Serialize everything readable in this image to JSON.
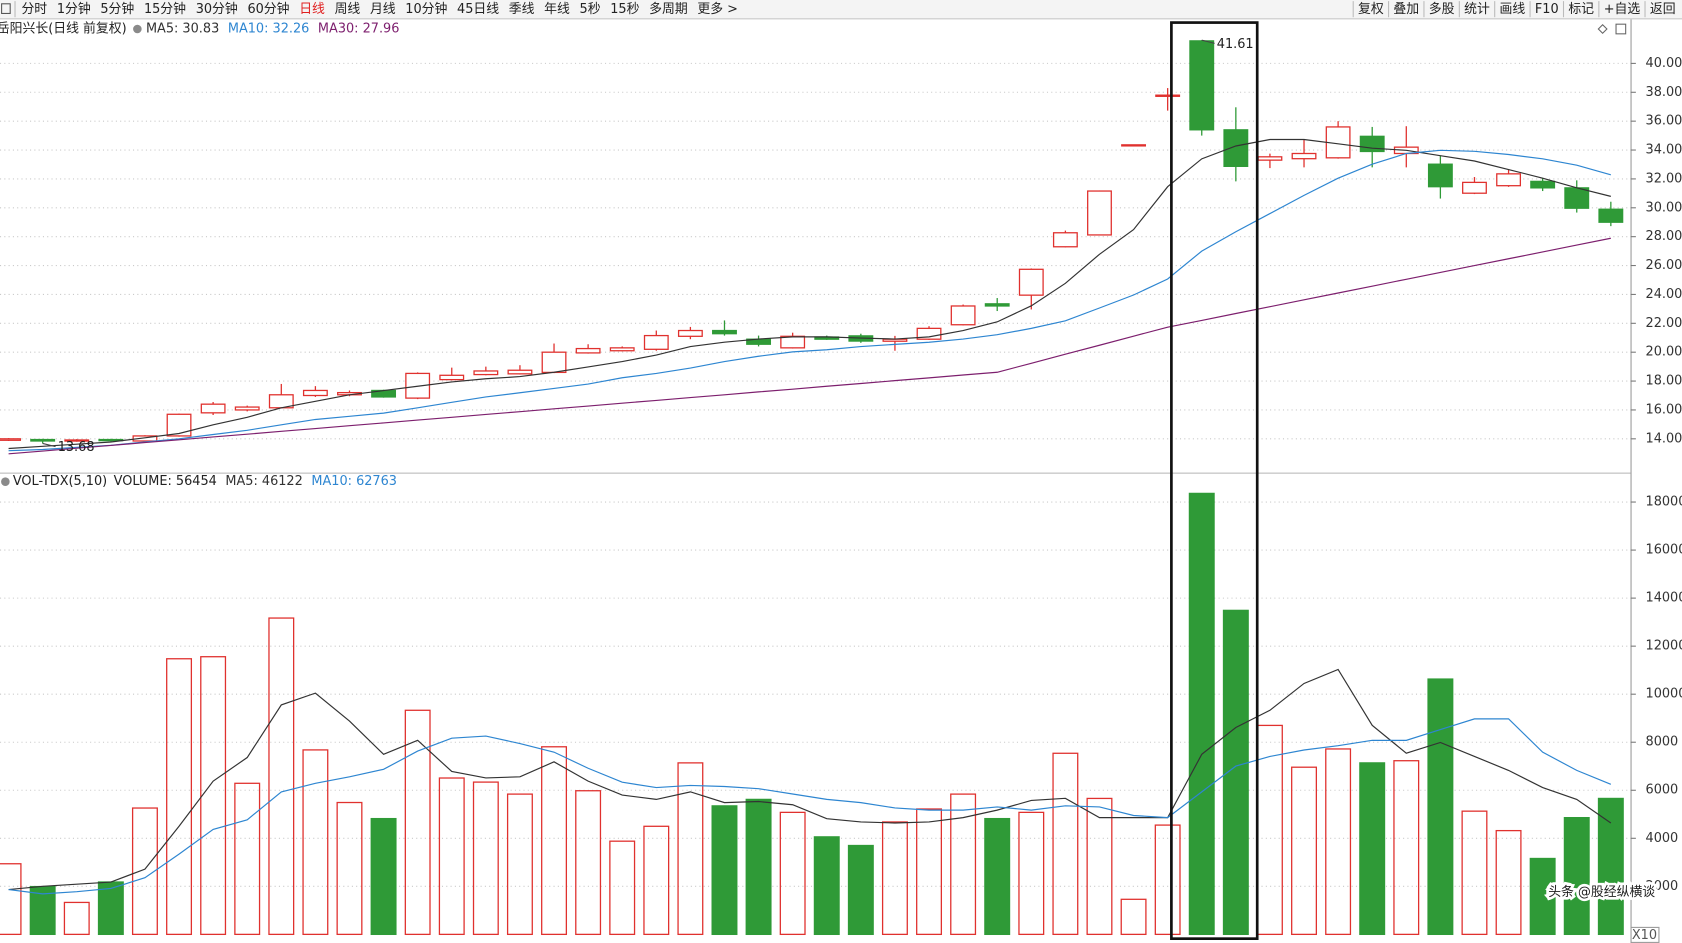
{
  "toolbar": {
    "periods": [
      "分时",
      "1分钟",
      "5分钟",
      "15分钟",
      "30分钟",
      "60分钟",
      "日线",
      "周线",
      "月线",
      "10分钟",
      "45日线",
      "季线",
      "年线",
      "5秒",
      "15秒",
      "多周期",
      "更多 >"
    ],
    "active_period_index": 6,
    "tools": [
      "复权",
      "叠加",
      "多股",
      "统计",
      "画线",
      "F10",
      "标记",
      "+自选",
      "返回"
    ]
  },
  "chart_data": [
    {
      "type": "candlestick",
      "title": "岳阳兴长(日线 前复权)",
      "up_color": "#e0312e",
      "down_color": "#2f9a37",
      "open": [
        13.9,
        13.95,
        13.85,
        13.95,
        13.85,
        14.2,
        15.8,
        16.0,
        16.15,
        17.0,
        17.05,
        17.35,
        16.82,
        18.1,
        18.45,
        18.5,
        18.6,
        19.95,
        20.1,
        20.2,
        21.1,
        21.5,
        20.9,
        20.3,
        21.05,
        21.13,
        20.76,
        20.9,
        21.9,
        23.35,
        23.95,
        27.3,
        28.12,
        34.36,
        37.72,
        41.56,
        35.4,
        33.3,
        33.4,
        33.46,
        34.95,
        33.76,
        33.02,
        31.01,
        31.53,
        31.83,
        31.38,
        29.9
      ],
      "high": [
        14.05,
        14.0,
        13.98,
        14.0,
        14.25,
        15.75,
        16.55,
        16.3,
        17.8,
        17.65,
        17.35,
        17.4,
        18.6,
        18.93,
        19.0,
        19.1,
        20.6,
        20.55,
        20.4,
        21.5,
        21.75,
        22.2,
        21.15,
        21.35,
        21.15,
        21.28,
        21.13,
        21.8,
        23.3,
        23.75,
        25.8,
        28.42,
        31.2,
        34.36,
        38.29,
        41.61,
        36.96,
        33.75,
        34.72,
        36.0,
        35.6,
        35.65,
        33.6,
        32.13,
        32.65,
        32.05,
        31.9,
        30.42
      ],
      "low": [
        13.85,
        13.68,
        13.8,
        13.82,
        13.8,
        14.15,
        15.65,
        15.9,
        16.1,
        16.9,
        16.95,
        16.85,
        16.75,
        18.05,
        18.4,
        18.45,
        18.55,
        19.9,
        20.05,
        20.1,
        20.9,
        21.15,
        20.4,
        20.25,
        20.85,
        20.65,
        20.1,
        20.85,
        21.85,
        22.85,
        22.96,
        27.25,
        28.1,
        34.36,
        36.73,
        35.0,
        31.83,
        32.75,
        32.8,
        33.4,
        32.8,
        32.8,
        30.64,
        30.95,
        31.45,
        31.16,
        29.67,
        28.73
      ],
      "close": [
        14.0,
        13.85,
        13.92,
        13.88,
        14.2,
        15.7,
        16.4,
        16.2,
        17.05,
        17.35,
        17.2,
        16.9,
        18.53,
        18.4,
        18.7,
        18.75,
        20.0,
        20.25,
        20.3,
        21.15,
        21.5,
        21.28,
        20.55,
        21.1,
        20.9,
        20.77,
        20.9,
        21.65,
        23.2,
        23.2,
        25.74,
        28.27,
        31.16,
        34.36,
        37.8,
        35.4,
        32.87,
        33.53,
        33.76,
        35.6,
        33.9,
        34.2,
        31.46,
        31.76,
        32.35,
        31.38,
        29.97,
        29.0
      ],
      "series": [
        {
          "name": "MA5: 30.83",
          "type": "line",
          "color": "#333333",
          "values": [
            13.33,
            13.48,
            13.63,
            13.78,
            14.07,
            14.37,
            14.97,
            15.49,
            16.15,
            16.6,
            17.05,
            17.34,
            17.64,
            17.94,
            18.16,
            18.31,
            18.61,
            18.98,
            19.35,
            19.8,
            20.39,
            20.69,
            20.91,
            21.06,
            21.06,
            20.98,
            20.91,
            21.06,
            21.5,
            22.1,
            23.21,
            24.77,
            26.78,
            28.49,
            31.46,
            33.39,
            34.28,
            34.73,
            34.73,
            34.43,
            34.13,
            33.98,
            33.61,
            33.24,
            32.65,
            32.05,
            31.38,
            30.79
          ]
        },
        {
          "name": "MA10: 32.26",
          "type": "line",
          "color": "#2e86d1",
          "values": [
            13.18,
            13.26,
            13.41,
            13.55,
            13.78,
            14.0,
            14.3,
            14.59,
            14.97,
            15.34,
            15.56,
            15.78,
            16.15,
            16.53,
            16.9,
            17.19,
            17.49,
            17.79,
            18.23,
            18.53,
            18.9,
            19.35,
            19.72,
            20.02,
            20.17,
            20.39,
            20.54,
            20.69,
            20.91,
            21.21,
            21.65,
            22.17,
            23.06,
            23.96,
            25.07,
            27.0,
            28.34,
            29.6,
            30.86,
            32.05,
            33.02,
            33.76,
            33.98,
            33.91,
            33.69,
            33.39,
            32.95,
            32.28
          ]
        },
        {
          "name": "MA30: 27.96",
          "type": "line",
          "color": "#7d1f6e",
          "values": [
            12.96,
            13.15,
            13.35,
            13.54,
            13.74,
            13.93,
            14.13,
            14.32,
            14.52,
            14.71,
            14.91,
            15.1,
            15.3,
            15.49,
            15.69,
            15.88,
            16.08,
            16.27,
            16.47,
            16.66,
            16.86,
            17.05,
            17.25,
            17.44,
            17.64,
            17.83,
            18.03,
            18.22,
            18.42,
            18.61,
            19.23,
            19.86,
            20.48,
            21.11,
            21.73,
            22.2,
            22.68,
            23.15,
            23.63,
            24.1,
            24.57,
            25.05,
            25.52,
            26.0,
            26.47,
            26.94,
            27.42,
            27.89
          ]
        }
      ],
      "annotations": [
        {
          "text": "41.61",
          "value": 41.61,
          "index": 35
        },
        {
          "text": "13.68",
          "value": 13.68,
          "index": 1
        }
      ],
      "ylim": [
        11.7,
        43.05
      ],
      "yticks": [
        {
          "value": 14,
          "label": "14.00"
        },
        {
          "value": 16,
          "label": "16.00"
        },
        {
          "value": 18,
          "label": "18.00"
        },
        {
          "value": 20,
          "label": "20.00"
        },
        {
          "value": 22,
          "label": "22.00"
        },
        {
          "value": 24,
          "label": "24.00"
        },
        {
          "value": 26,
          "label": "26.00"
        },
        {
          "value": 28,
          "label": "28.00"
        },
        {
          "value": 30,
          "label": "30.00"
        },
        {
          "value": 32,
          "label": "32.00"
        },
        {
          "value": 34,
          "label": "34.00"
        },
        {
          "value": 36,
          "label": "36.00"
        },
        {
          "value": 38,
          "label": "38.00"
        },
        {
          "value": 40,
          "label": "40.00"
        }
      ],
      "grid": true
    },
    {
      "type": "bar",
      "title": "VOL-TDX(5,10)",
      "series": [
        {
          "name": "VOLUME: 56454",
          "type": "bar",
          "values": [
            2940,
            1990,
            1330,
            2180,
            5260,
            11475,
            11560,
            6290,
            13170,
            7680,
            5490,
            4820,
            9330,
            6510,
            6340,
            5840,
            7810,
            5980,
            3880,
            4500,
            7140,
            5350,
            5620,
            5080,
            4060,
            3700,
            4680,
            5220,
            5840,
            4820,
            5080,
            7540,
            5660,
            1460,
            4550,
            18360,
            13490,
            8700,
            6960,
            7720,
            7140,
            7230,
            10630,
            5130,
            4320,
            3160,
            4860,
            5660
          ]
        },
        {
          "name": "MA5: 46122",
          "type": "line",
          "color": "#333333",
          "values": [
            1866,
            2000,
            2089,
            2179,
            2715,
            4503,
            6380,
            7363,
            9553,
            10045,
            8883,
            7497,
            8078,
            6782,
            6514,
            6559,
            7184,
            6380,
            5799,
            5620,
            5933,
            5486,
            5531,
            5397,
            4816,
            4682,
            4637,
            4682,
            4861,
            5173,
            5575,
            5665,
            4861,
            4861,
            4861,
            7497,
            8614,
            9330,
            10447,
            11028,
            8704,
            7542,
            7989,
            7408,
            6827,
            6112,
            5620,
            4637
          ]
        },
        {
          "name": "MA10: 62763",
          "type": "line",
          "color": "#2e86d1",
          "values": [
            1866,
            1687,
            1777,
            1911,
            2358,
            3341,
            4369,
            4771,
            5933,
            6291,
            6559,
            6872,
            7631,
            8168,
            8257,
            7944,
            7587,
            6916,
            6335,
            6112,
            6202,
            6157,
            6067,
            5844,
            5620,
            5486,
            5263,
            5173,
            5173,
            5307,
            5173,
            5352,
            5307,
            4950,
            4861,
            5933,
            7006,
            7408,
            7676,
            7855,
            8078,
            8078,
            8525,
            8972,
            8972,
            7587,
            6827,
            6246
          ]
        }
      ],
      "axis_note": "X10",
      "ylim": [
        0,
        19160
      ],
      "yticks": [
        2000,
        4000,
        6000,
        8000,
        10000,
        12000,
        14000,
        16000,
        18000
      ],
      "grid": true
    }
  ],
  "watermark": "头条 @股经纵横谈"
}
